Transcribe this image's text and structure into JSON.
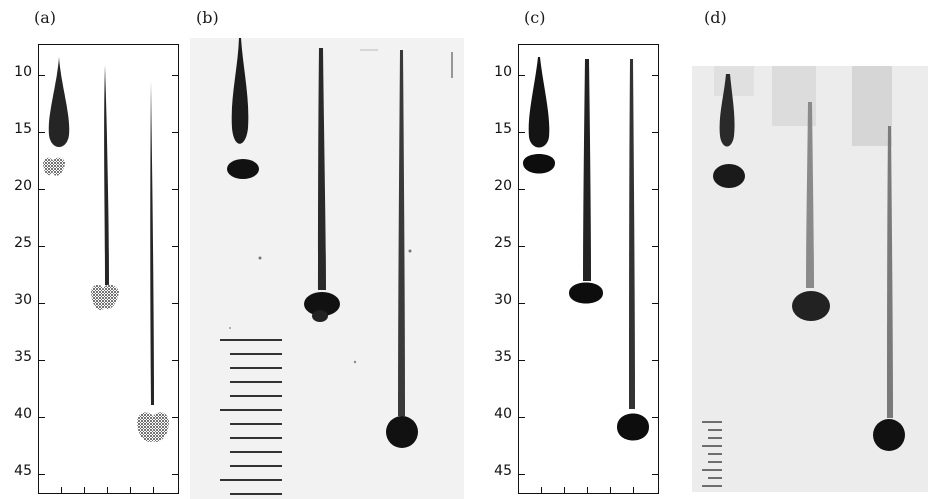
{
  "panels": {
    "a": {
      "label": "(a)"
    },
    "b": {
      "label": "(b)"
    },
    "c": {
      "label": "(c)"
    },
    "d": {
      "label": "(d)"
    }
  },
  "axis": {
    "ticks": [
      "10",
      "15",
      "20",
      "25",
      "30",
      "35",
      "40",
      "45"
    ]
  },
  "colors": {
    "ink": "#111111",
    "photo_bg_b": "#f1f1f1",
    "photo_bg_d": "#ebebeb"
  }
}
